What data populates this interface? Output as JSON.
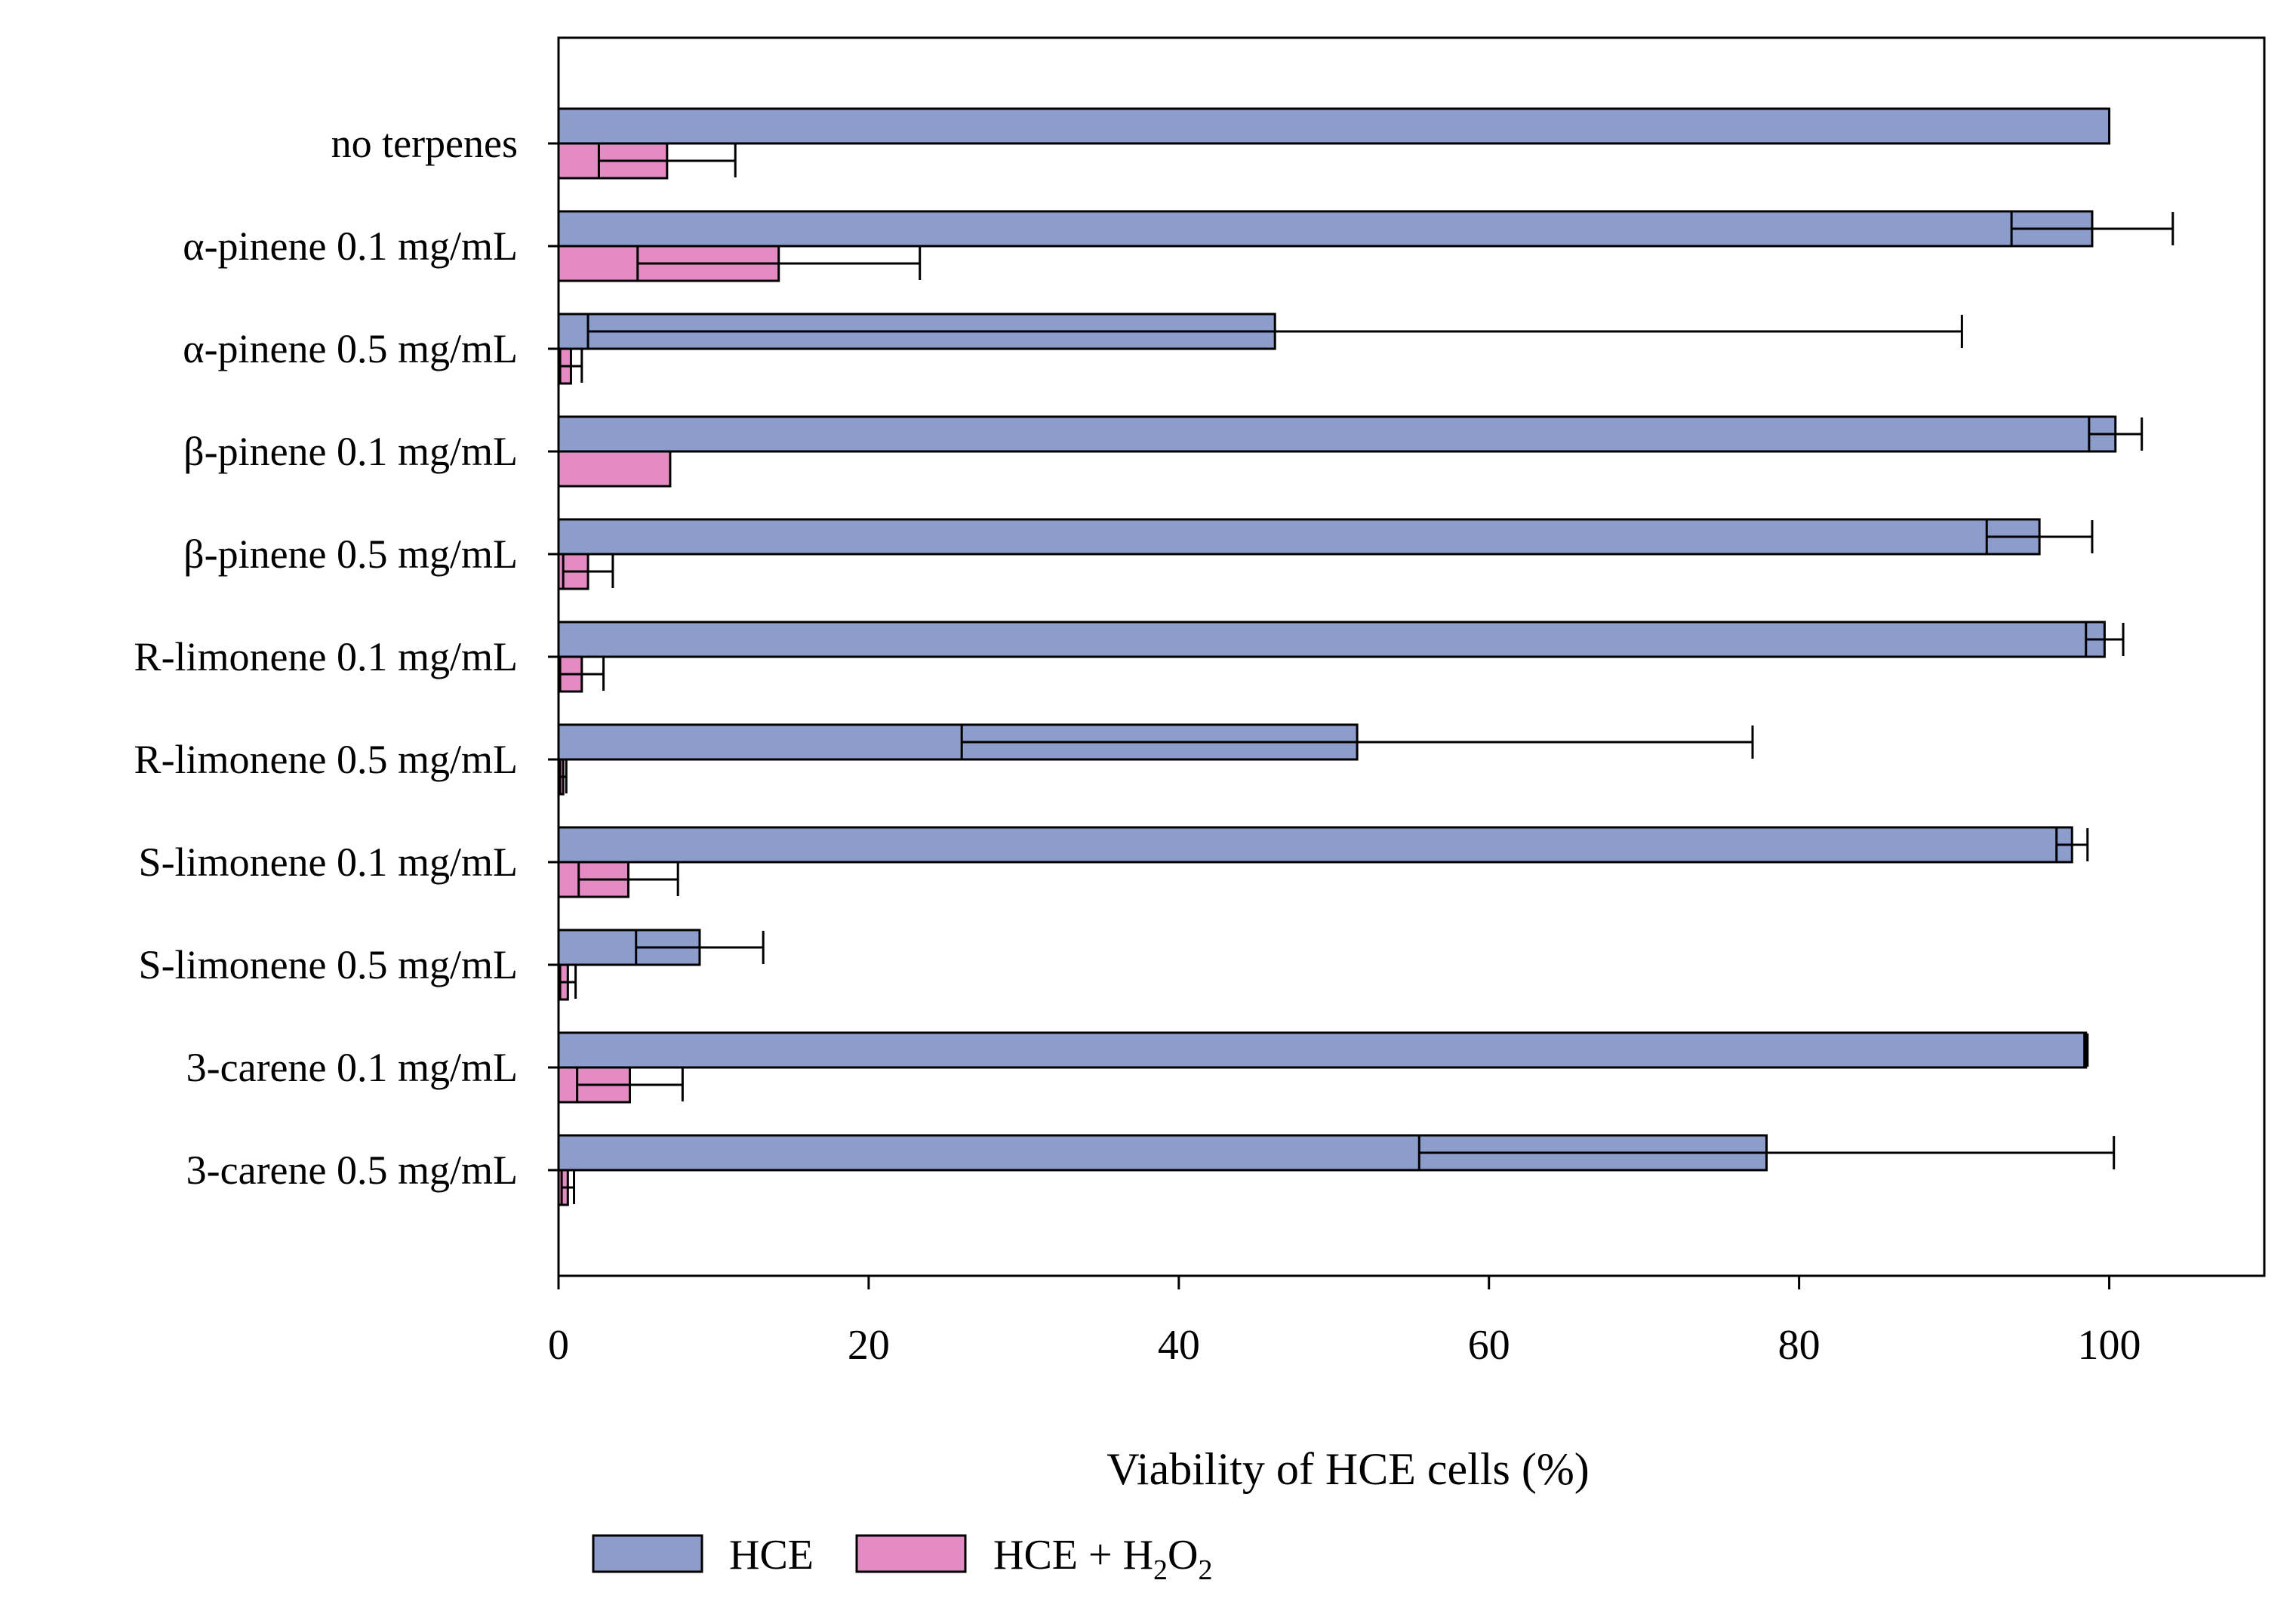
{
  "colors": {
    "hce": "#8d9dcb",
    "hce_h2o2": "#e48bc4",
    "stroke": "#000000"
  },
  "chart_data": {
    "type": "bar",
    "orientation": "horizontal",
    "xlabel": "Viability of HCE cells (%)",
    "xlim": [
      0,
      110
    ],
    "xticks": [
      0,
      20,
      40,
      60,
      80,
      100
    ],
    "xtick_labels": [
      "0",
      "20",
      "40",
      "60",
      "80",
      "100"
    ],
    "grid": false,
    "legend_position": "bottom-left",
    "categories": [
      "no terpenes",
      "α-pinene 0.1 mg/mL",
      "α-pinene 0.5 mg/mL",
      "β-pinene 0.1 mg/mL",
      "β-pinene 0.5 mg/mL",
      "R-limonene 0.1 mg/mL",
      "R-limonene 0.5 mg/mL",
      "S-limonene 0.1 mg/mL",
      "S-limonene 0.5 mg/mL",
      "3-carene 0.1 mg/mL",
      "3-carene 0.5 mg/mL"
    ],
    "series": [
      {
        "name": "HCE",
        "legend_label": "HCE",
        "color_key": "hce",
        "values": [
          100,
          98.9,
          46.2,
          100.4,
          95.5,
          99.7,
          51.5,
          97.6,
          9.1,
          98.5,
          77.9
        ],
        "errors": [
          0,
          5.2,
          44.3,
          1.7,
          3.4,
          1.2,
          25.5,
          1.0,
          4.1,
          0.1,
          22.4
        ]
      },
      {
        "name": "HCE + H2O2",
        "legend_label": "HCE + H",
        "legend_sub_1": "2",
        "legend_mid": "O",
        "legend_sub_2": "2",
        "color_key": "hce_h2o2",
        "values": [
          7.0,
          14.2,
          0.8,
          7.2,
          1.9,
          1.5,
          0.3,
          4.5,
          0.6,
          4.6,
          0.6
        ],
        "errors": [
          4.4,
          9.1,
          0.7,
          0,
          1.6,
          1.4,
          0.2,
          3.2,
          0.5,
          3.4,
          0.4
        ]
      }
    ]
  }
}
